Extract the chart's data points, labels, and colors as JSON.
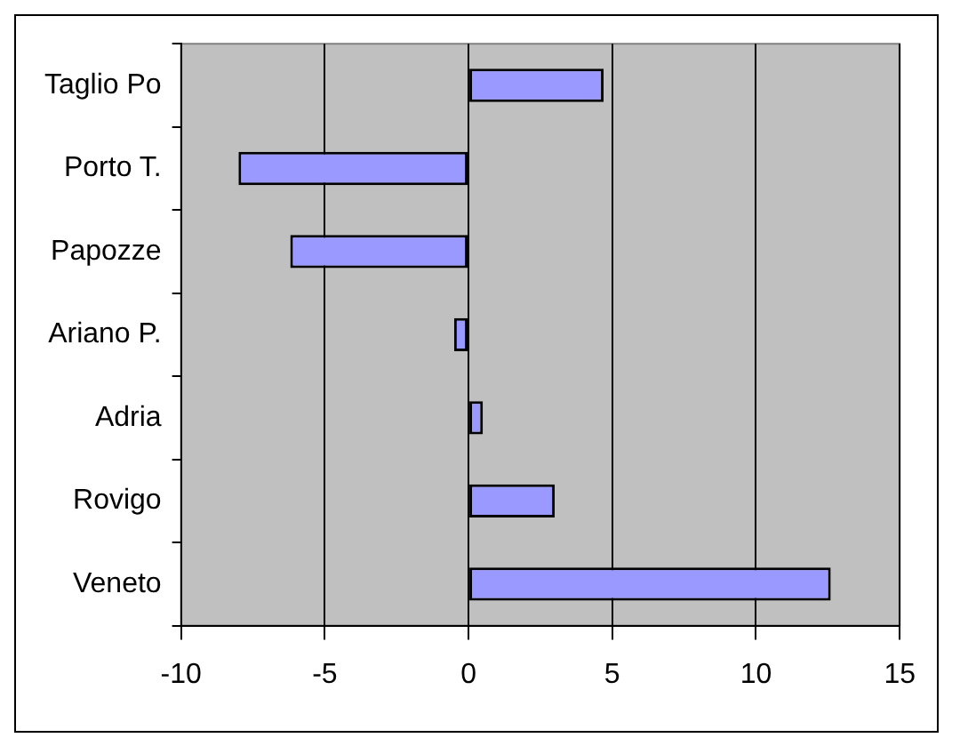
{
  "chart_data": {
    "type": "bar",
    "orientation": "horizontal",
    "categories": [
      "Taglio Po",
      "Porto T.",
      "Papozze",
      "Ariano P.",
      "Adria",
      "Rovigo",
      "Veneto"
    ],
    "values": [
      4.7,
      -8.0,
      -6.2,
      -0.5,
      0.5,
      3.0,
      12.6
    ],
    "color": "#9999ff",
    "xlim": [
      -10,
      15
    ],
    "xticks": [
      -10,
      -5,
      0,
      5,
      10,
      15
    ],
    "grid": "x",
    "legend": false
  }
}
